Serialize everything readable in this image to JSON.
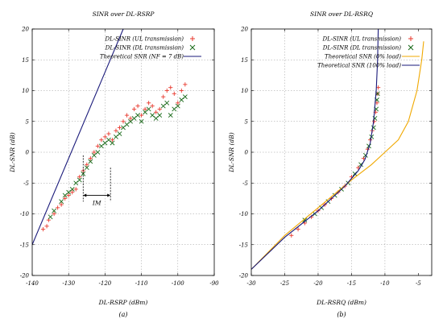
{
  "chart_data": [
    {
      "type": "scatter",
      "title": "SINR over DL-RSRP",
      "xlabel": "DL-RSRP (dBm)",
      "ylabel": "DL-SNR (dB)",
      "caption": "(a)",
      "xlim": [
        -140,
        -90
      ],
      "ylim": [
        -20,
        20
      ],
      "xticks": [
        -140,
        -130,
        -120,
        -110,
        -100,
        -90
      ],
      "yticks": [
        -20,
        -15,
        -10,
        -5,
        0,
        5,
        10,
        15,
        20
      ],
      "xtick_labels": [
        "-140",
        "-130",
        "-120",
        "-110",
        "-100",
        "-90"
      ],
      "ytick_labels": [
        "-20",
        "-15",
        "-10",
        "-5",
        "0",
        "5",
        "10",
        "15",
        "20"
      ],
      "grid": true,
      "legend_position": "top-right",
      "annotation": "IM",
      "annotation_span": [
        -126,
        -118.5
      ],
      "annotation_y": -7,
      "series": [
        {
          "name": "DL-SINR (UL transmission)",
          "marker": "plus",
          "color": "#e8392e",
          "points": [
            [
              -137,
              -12.5
            ],
            [
              -136,
              -12
            ],
            [
              -135.5,
              -11
            ],
            [
              -134,
              -10
            ],
            [
              -133,
              -9
            ],
            [
              -132,
              -8.5
            ],
            [
              -131,
              -7.5
            ],
            [
              -130,
              -7
            ],
            [
              -129,
              -6.5
            ],
            [
              -128,
              -6
            ],
            [
              -127,
              -4
            ],
            [
              -126,
              -3
            ],
            [
              -125,
              -2
            ],
            [
              -124,
              -1
            ],
            [
              -123,
              0
            ],
            [
              -122,
              1
            ],
            [
              -121,
              2
            ],
            [
              -120,
              2.5
            ],
            [
              -119,
              3
            ],
            [
              -118,
              2
            ],
            [
              -117,
              3.5
            ],
            [
              -116,
              4
            ],
            [
              -115,
              5
            ],
            [
              -114,
              6
            ],
            [
              -113,
              5.5
            ],
            [
              -112,
              7
            ],
            [
              -111,
              7.5
            ],
            [
              -110,
              6
            ],
            [
              -109,
              7
            ],
            [
              -108,
              8
            ],
            [
              -107,
              7.5
            ],
            [
              -106,
              6.5
            ],
            [
              -105,
              7
            ],
            [
              -104,
              9
            ],
            [
              -103,
              10
            ],
            [
              -102,
              10.5
            ],
            [
              -101,
              9.5
            ],
            [
              -100,
              8
            ],
            [
              -99,
              10
            ],
            [
              -98,
              11
            ]
          ]
        },
        {
          "name": "DL-SINR (DL transmission)",
          "marker": "cross",
          "color": "#1a6b1a",
          "points": [
            [
              -135,
              -10.5
            ],
            [
              -134,
              -9.5
            ],
            [
              -132,
              -8
            ],
            [
              -131,
              -7
            ],
            [
              -130,
              -6.5
            ],
            [
              -129,
              -6
            ],
            [
              -128,
              -5
            ],
            [
              -127,
              -4.5
            ],
            [
              -126,
              -3.5
            ],
            [
              -125,
              -2.5
            ],
            [
              -124,
              -1.5
            ],
            [
              -123,
              -0.5
            ],
            [
              -122,
              0
            ],
            [
              -121,
              1
            ],
            [
              -120,
              1.5
            ],
            [
              -119,
              2
            ],
            [
              -118,
              1.5
            ],
            [
              -117,
              2.5
            ],
            [
              -116,
              3
            ],
            [
              -115,
              4
            ],
            [
              -114,
              4.5
            ],
            [
              -113,
              5
            ],
            [
              -112,
              5.5
            ],
            [
              -111,
              6
            ],
            [
              -110,
              5
            ],
            [
              -109,
              6.5
            ],
            [
              -108,
              7
            ],
            [
              -107,
              6
            ],
            [
              -106,
              5.5
            ],
            [
              -105,
              6
            ],
            [
              -104,
              7.5
            ],
            [
              -103,
              8
            ],
            [
              -102,
              6
            ],
            [
              -101,
              7
            ],
            [
              -100,
              7.5
            ],
            [
              -99,
              8.5
            ],
            [
              -98,
              9
            ]
          ]
        },
        {
          "name": "Theoretical SNR (NF = 7 dB)",
          "marker": "line",
          "color": "#1a1a7a",
          "points": [
            [
              -140,
              -15
            ],
            [
              -115,
              20
            ]
          ]
        }
      ]
    },
    {
      "type": "scatter",
      "title": "SINR over DL-RSRQ",
      "xlabel": "DL-RSRQ (dBm)",
      "ylabel": "DL-SNR (dB)",
      "caption": "(b)",
      "xlim": [
        -30,
        -3
      ],
      "ylim": [
        -20,
        20
      ],
      "xticks": [
        -30,
        -25,
        -20,
        -15,
        -10,
        -5
      ],
      "yticks": [
        -20,
        -15,
        -10,
        -5,
        0,
        5,
        10,
        15,
        20
      ],
      "xtick_labels": [
        "-30",
        "-25",
        "-20",
        "-15",
        "-10",
        "-5"
      ],
      "ytick_labels": [
        "-20",
        "-15",
        "-10",
        "-5",
        "0",
        "5",
        "10",
        "15",
        "20"
      ],
      "grid": true,
      "legend_position": "top-right",
      "series": [
        {
          "name": "DL-SINR (UL transmission)",
          "marker": "plus",
          "color": "#e8392e",
          "points": [
            [
              -24,
              -13.5
            ],
            [
              -23,
              -12.5
            ],
            [
              -22,
              -11.5
            ],
            [
              -21,
              -10.5
            ],
            [
              -20,
              -9.5
            ],
            [
              -19,
              -8.5
            ],
            [
              -18,
              -7.5
            ],
            [
              -17,
              -6.5
            ],
            [
              -16,
              -5.5
            ],
            [
              -15,
              -4
            ],
            [
              -14,
              -2.5
            ],
            [
              -13.2,
              -1
            ],
            [
              -12.6,
              0.5
            ],
            [
              -12.2,
              2
            ],
            [
              -11.9,
              3.5
            ],
            [
              -11.6,
              5
            ],
            [
              -11.4,
              6.5
            ],
            [
              -11.2,
              8
            ],
            [
              -11.1,
              9.5
            ],
            [
              -11.0,
              10.5
            ]
          ]
        },
        {
          "name": "DL-SINR (DL transmission)",
          "marker": "cross",
          "color": "#1a6b1a",
          "points": [
            [
              -22,
              -11
            ],
            [
              -20.5,
              -10
            ],
            [
              -19.5,
              -9
            ],
            [
              -18.5,
              -8
            ],
            [
              -17.5,
              -7
            ],
            [
              -16.5,
              -6
            ],
            [
              -15.5,
              -5
            ],
            [
              -14.5,
              -3.5
            ],
            [
              -13.6,
              -2
            ],
            [
              -12.9,
              -0.5
            ],
            [
              -12.4,
              1
            ],
            [
              -12.0,
              2.5
            ],
            [
              -11.7,
              4
            ],
            [
              -11.5,
              5.5
            ],
            [
              -11.3,
              7
            ],
            [
              -11.2,
              8.5
            ],
            [
              -11.1,
              9.5
            ]
          ]
        },
        {
          "name": "Theoretical SNR (0% load)",
          "marker": "line",
          "color": "#f0a800",
          "points": [
            [
              -30,
              -19
            ],
            [
              -25,
              -13.5
            ],
            [
              -20,
              -9
            ],
            [
              -15,
              -4.5
            ],
            [
              -12,
              -2
            ],
            [
              -10,
              0
            ],
            [
              -8,
              2
            ],
            [
              -6.5,
              5
            ],
            [
              -5.2,
              10
            ],
            [
              -4.5,
              15
            ],
            [
              -4.2,
              18
            ]
          ]
        },
        {
          "name": "Theoretical SNR (100% load)",
          "marker": "line",
          "color": "#1a1a7a",
          "points": [
            [
              -30,
              -19
            ],
            [
              -25,
              -13.8
            ],
            [
              -20,
              -9.5
            ],
            [
              -16,
              -5.5
            ],
            [
              -14,
              -3
            ],
            [
              -13,
              -1.2
            ],
            [
              -12.2,
              1.5
            ],
            [
              -11.7,
              5
            ],
            [
              -11.3,
              10
            ],
            [
              -11.1,
              15
            ],
            [
              -11.0,
              20
            ]
          ]
        }
      ]
    }
  ]
}
